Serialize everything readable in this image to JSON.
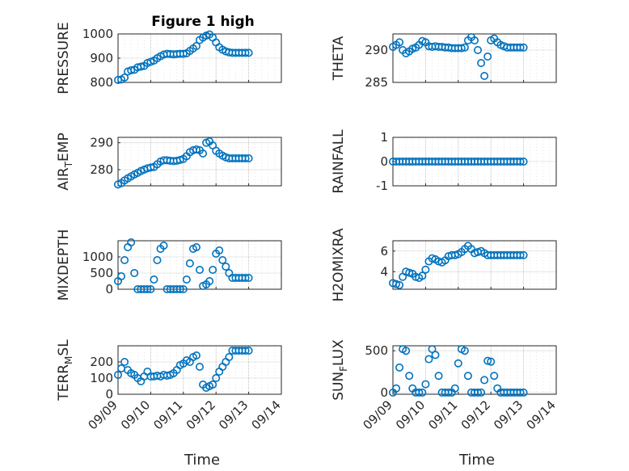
{
  "figure_title": "Figure 1 high",
  "chart_data": [
    {
      "type": "scatter",
      "panel": "top-left",
      "title": "Figure 1 high",
      "ylabel": "PRESSURE",
      "xlabel": "",
      "ylim": [
        800,
        1000
      ],
      "yticks": [
        "800",
        "900",
        "1000"
      ],
      "xlim": [
        0,
        5
      ],
      "xtick_labels": [],
      "x": [
        0,
        0.1,
        0.2,
        0.3,
        0.4,
        0.5,
        0.6,
        0.7,
        0.8,
        0.9,
        1.0,
        1.1,
        1.2,
        1.3,
        1.4,
        1.5,
        1.6,
        1.7,
        1.8,
        1.9,
        2.0,
        2.1,
        2.2,
        2.3,
        2.4,
        2.5,
        2.6,
        2.7,
        2.8,
        2.9,
        3.0,
        3.1,
        3.2,
        3.3,
        3.4,
        3.5,
        3.6,
        3.7,
        3.8,
        3.9,
        4.0
      ],
      "y": [
        810,
        812,
        820,
        845,
        850,
        852,
        862,
        865,
        868,
        880,
        885,
        890,
        900,
        908,
        915,
        918,
        917,
        916,
        917,
        918,
        918,
        920,
        930,
        940,
        950,
        975,
        985,
        993,
        998,
        985,
        965,
        945,
        935,
        928,
        924,
        922,
        922,
        922,
        922,
        922,
        922
      ]
    },
    {
      "type": "scatter",
      "panel": "top-right",
      "ylabel": "THETA",
      "xlabel": "",
      "ylim": [
        285,
        292.5
      ],
      "yticks": [
        "285",
        "290"
      ],
      "xlim": [
        0,
        5
      ],
      "xtick_labels": [],
      "x": [
        0,
        0.1,
        0.2,
        0.3,
        0.4,
        0.5,
        0.6,
        0.7,
        0.8,
        0.9,
        1.0,
        1.1,
        1.2,
        1.3,
        1.4,
        1.5,
        1.6,
        1.7,
        1.8,
        1.9,
        2.0,
        2.1,
        2.2,
        2.3,
        2.4,
        2.5,
        2.6,
        2.7,
        2.8,
        2.9,
        3.0,
        3.1,
        3.2,
        3.3,
        3.4,
        3.5,
        3.6,
        3.7,
        3.8,
        3.9,
        4.0
      ],
      "y": [
        290.5,
        290.8,
        291.2,
        290.0,
        289.5,
        289.8,
        290.2,
        290.4,
        290.8,
        291.4,
        291.2,
        290.6,
        290.5,
        290.6,
        290.5,
        290.5,
        290.4,
        290.4,
        290.3,
        290.3,
        290.3,
        290.3,
        290.4,
        291.5,
        292.0,
        291.5,
        290.0,
        288.0,
        286.0,
        289.0,
        291.5,
        291.8,
        291.2,
        290.8,
        290.6,
        290.4,
        290.4,
        290.4,
        290.4,
        290.4,
        290.4
      ]
    },
    {
      "type": "scatter",
      "panel": "second-left",
      "ylabel": "AIR_TEMP",
      "ylabel_display": {
        "pre": "AIR",
        "sub": "T",
        "post": "EMP"
      },
      "xlabel": "",
      "ylim": [
        274,
        292
      ],
      "yticks": [
        "280",
        "290"
      ],
      "xlim": [
        0,
        5
      ],
      "xtick_labels": [],
      "x": [
        0,
        0.1,
        0.2,
        0.3,
        0.4,
        0.5,
        0.6,
        0.7,
        0.8,
        0.9,
        1.0,
        1.1,
        1.2,
        1.3,
        1.4,
        1.5,
        1.6,
        1.7,
        1.8,
        1.9,
        2.0,
        2.1,
        2.2,
        2.3,
        2.4,
        2.5,
        2.6,
        2.7,
        2.8,
        2.9,
        3.0,
        3.1,
        3.2,
        3.3,
        3.4,
        3.5,
        3.6,
        3.7,
        3.8,
        3.9,
        4.0
      ],
      "y": [
        274.5,
        275.0,
        276.0,
        276.8,
        277.5,
        278.2,
        278.8,
        279.5,
        280.0,
        280.5,
        280.8,
        281.0,
        282.0,
        283.0,
        283.5,
        283.5,
        283.3,
        283.2,
        283.3,
        283.6,
        284.0,
        285.0,
        286.5,
        287.2,
        287.5,
        287.2,
        286.0,
        290.0,
        290.5,
        289.0,
        287.0,
        286.0,
        285.2,
        284.6,
        284.2,
        284.2,
        284.2,
        284.2,
        284.2,
        284.2,
        284.2
      ]
    },
    {
      "type": "scatter",
      "panel": "second-right",
      "ylabel": "RAINFALL",
      "xlabel": "",
      "ylim": [
        -1,
        1
      ],
      "yticks": [
        "-1",
        "0",
        "1"
      ],
      "xlim": [
        0,
        5
      ],
      "xtick_labels": [],
      "x": [
        0,
        0.1,
        0.2,
        0.3,
        0.4,
        0.5,
        0.6,
        0.7,
        0.8,
        0.9,
        1.0,
        1.1,
        1.2,
        1.3,
        1.4,
        1.5,
        1.6,
        1.7,
        1.8,
        1.9,
        2.0,
        2.1,
        2.2,
        2.3,
        2.4,
        2.5,
        2.6,
        2.7,
        2.8,
        2.9,
        3.0,
        3.1,
        3.2,
        3.3,
        3.4,
        3.5,
        3.6,
        3.7,
        3.8,
        3.9,
        4.0
      ],
      "y": [
        0,
        0,
        0,
        0,
        0,
        0,
        0,
        0,
        0,
        0,
        0,
        0,
        0,
        0,
        0,
        0,
        0,
        0,
        0,
        0,
        0,
        0,
        0,
        0,
        0,
        0,
        0,
        0,
        0,
        0,
        0,
        0,
        0,
        0,
        0,
        0,
        0,
        0,
        0,
        0,
        0
      ]
    },
    {
      "type": "scatter",
      "panel": "third-left",
      "ylabel": "MIXDEPTH",
      "xlabel": "",
      "ylim": [
        0,
        1500
      ],
      "yticks": [
        "0",
        "500",
        "1000"
      ],
      "xlim": [
        0,
        5
      ],
      "xtick_labels": [],
      "x": [
        0,
        0.1,
        0.2,
        0.3,
        0.4,
        0.5,
        0.6,
        0.7,
        0.8,
        0.9,
        1.0,
        1.1,
        1.2,
        1.3,
        1.4,
        1.5,
        1.6,
        1.7,
        1.8,
        1.9,
        2.0,
        2.1,
        2.2,
        2.3,
        2.4,
        2.5,
        2.6,
        2.7,
        2.8,
        2.9,
        3.0,
        3.1,
        3.2,
        3.3,
        3.4,
        3.5,
        3.6,
        3.7,
        3.8,
        3.9,
        4.0
      ],
      "y": [
        250,
        400,
        900,
        1300,
        1450,
        500,
        0,
        0,
        0,
        0,
        0,
        300,
        900,
        1250,
        1350,
        0,
        0,
        0,
        0,
        0,
        0,
        300,
        800,
        1250,
        1300,
        600,
        100,
        150,
        250,
        600,
        1100,
        1200,
        900,
        700,
        500,
        350,
        350,
        350,
        350,
        350,
        350
      ]
    },
    {
      "type": "scatter",
      "panel": "third-right",
      "ylabel": "H2OMIXRA",
      "xlabel": "",
      "ylim": [
        2.3,
        7.0
      ],
      "yticks": [
        "4",
        "6"
      ],
      "xlim": [
        0,
        5
      ],
      "xtick_labels": [],
      "x": [
        0,
        0.1,
        0.2,
        0.3,
        0.4,
        0.5,
        0.6,
        0.7,
        0.8,
        0.9,
        1.0,
        1.1,
        1.2,
        1.3,
        1.4,
        1.5,
        1.6,
        1.7,
        1.8,
        1.9,
        2.0,
        2.1,
        2.2,
        2.3,
        2.4,
        2.5,
        2.6,
        2.7,
        2.8,
        2.9,
        3.0,
        3.1,
        3.2,
        3.3,
        3.4,
        3.5,
        3.6,
        3.7,
        3.8,
        3.9,
        4.0
      ],
      "y": [
        2.9,
        2.8,
        2.7,
        3.5,
        4.0,
        3.9,
        3.8,
        3.5,
        3.4,
        3.6,
        4.2,
        5.0,
        5.3,
        5.2,
        5.0,
        4.9,
        5.1,
        5.5,
        5.6,
        5.6,
        5.7,
        5.9,
        6.2,
        6.5,
        6.2,
        5.8,
        5.9,
        6.0,
        5.8,
        5.6,
        5.6,
        5.6,
        5.6,
        5.6,
        5.6,
        5.6,
        5.6,
        5.6,
        5.6,
        5.6,
        5.6
      ]
    },
    {
      "type": "scatter",
      "panel": "bottom-left",
      "ylabel": "TERR_MSL",
      "ylabel_display": {
        "pre": "TERR",
        "sub": "M",
        "post": "SL"
      },
      "xlabel": "Time",
      "ylim": [
        0,
        300
      ],
      "yticks": [
        "0",
        "100",
        "200"
      ],
      "xlim": [
        0,
        5
      ],
      "xtick_labels": [
        "09/09",
        "09/10",
        "09/11",
        "09/12",
        "09/13",
        "09/14"
      ],
      "x": [
        0,
        0.1,
        0.2,
        0.3,
        0.4,
        0.5,
        0.6,
        0.7,
        0.8,
        0.9,
        1.0,
        1.1,
        1.2,
        1.3,
        1.4,
        1.5,
        1.6,
        1.7,
        1.8,
        1.9,
        2.0,
        2.1,
        2.2,
        2.3,
        2.4,
        2.5,
        2.6,
        2.7,
        2.8,
        2.9,
        3.0,
        3.1,
        3.2,
        3.3,
        3.4,
        3.5,
        3.6,
        3.7,
        3.8,
        3.9,
        4.0
      ],
      "y": [
        120,
        160,
        200,
        150,
        130,
        120,
        100,
        80,
        110,
        140,
        110,
        110,
        115,
        110,
        120,
        115,
        120,
        130,
        150,
        180,
        190,
        210,
        200,
        230,
        240,
        170,
        60,
        40,
        50,
        60,
        100,
        140,
        170,
        200,
        230,
        270,
        270,
        270,
        270,
        270,
        270
      ]
    },
    {
      "type": "scatter",
      "panel": "bottom-right",
      "ylabel": "SUN_FLUX",
      "ylabel_display": {
        "pre": "SUN",
        "sub": "F",
        "post": "LUX"
      },
      "xlabel": "Time",
      "ylim": [
        -20,
        560
      ],
      "yticks": [
        "0",
        "500"
      ],
      "xlim": [
        0,
        5
      ],
      "xtick_labels": [
        "09/09",
        "09/10",
        "09/11",
        "09/12",
        "09/13",
        "09/14"
      ],
      "x": [
        0,
        0.1,
        0.2,
        0.3,
        0.4,
        0.5,
        0.6,
        0.7,
        0.8,
        0.9,
        1.0,
        1.1,
        1.2,
        1.3,
        1.4,
        1.5,
        1.6,
        1.7,
        1.8,
        1.9,
        2.0,
        2.1,
        2.2,
        2.3,
        2.4,
        2.5,
        2.6,
        2.7,
        2.8,
        2.9,
        3.0,
        3.1,
        3.2,
        3.3,
        3.4,
        3.5,
        3.6,
        3.7,
        3.8,
        3.9,
        4.0
      ],
      "y": [
        0,
        50,
        300,
        520,
        500,
        200,
        50,
        0,
        0,
        0,
        100,
        400,
        520,
        450,
        200,
        0,
        0,
        0,
        0,
        50,
        350,
        520,
        500,
        200,
        0,
        0,
        0,
        0,
        150,
        380,
        370,
        200,
        50,
        0,
        0,
        0,
        0,
        0,
        0,
        0,
        0
      ]
    }
  ]
}
